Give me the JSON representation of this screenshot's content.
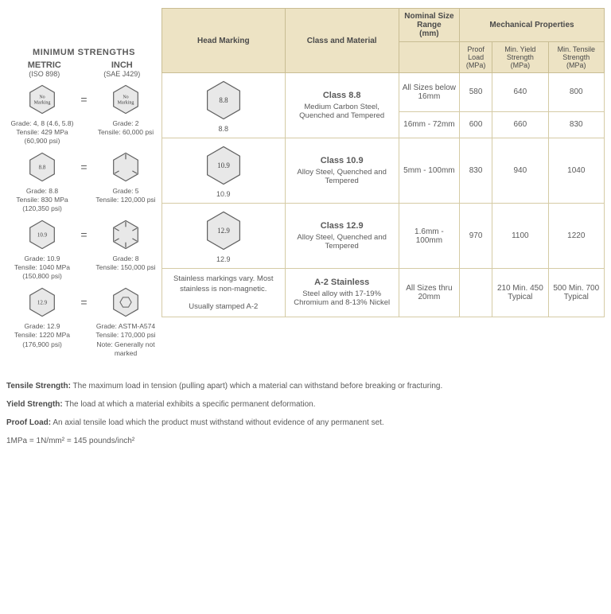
{
  "left": {
    "title": "MINIMUM STRENGTHS",
    "metric": {
      "unit": "METRIC",
      "std": "(ISO 898)"
    },
    "inch": {
      "unit": "INCH",
      "std": "(SAE J429)"
    },
    "comparisons": [
      {
        "metric_mark": "No\nMarking",
        "metric_grade": "Grade: 4, 8 (4.6, 5.8)",
        "metric_tensile": "Tensile: 429 MPa",
        "metric_psi": "(60,900 psi)",
        "inch_mark": "No\nMarking",
        "inch_grade": "Grade: 2",
        "inch_tensile": "Tensile: 60,000 psi",
        "inch_lines": 0
      },
      {
        "metric_mark": "8.8",
        "metric_grade": "Grade: 8.8",
        "metric_tensile": "Tensile: 830 MPa",
        "metric_psi": "(120,350 psi)",
        "inch_grade": "Grade: 5",
        "inch_tensile": "Tensile: 120,000 psi",
        "inch_lines": 3
      },
      {
        "metric_mark": "10.9",
        "metric_grade": "Grade: 10.9",
        "metric_tensile": "Tensile: 1040 MPa",
        "metric_psi": "(150,800 psi)",
        "inch_grade": "Grade: 8",
        "inch_tensile": "Tensile: 150,000 psi",
        "inch_lines": 6
      },
      {
        "metric_mark": "12.9",
        "metric_grade": "Grade: 12.9",
        "metric_tensile": "Tensile: 1220 MPa",
        "metric_psi": "(176,900 psi)",
        "inch_grade": "Grade: ASTM-A574",
        "inch_tensile": "Tensile: 170,000 psi",
        "inch_note": "Note: Generally not marked",
        "inch_socket": true
      }
    ]
  },
  "table": {
    "headers": {
      "head_marking": "Head Marking",
      "class_material": "Class and Material",
      "nominal": "Nominal Size Range",
      "nominal_unit": "(mm)",
      "mech": "Mechanical Properties",
      "proof": "Proof Load",
      "proof_unit": "(MPa)",
      "yield": "Min. Yield Strength",
      "yield_unit": "(MPa)",
      "tensile": "Min. Tensile Strength",
      "tensile_unit": "(MPa)"
    },
    "rows": [
      {
        "mark": "8.8",
        "class_name": "Class 8.8",
        "material": "Medium Carbon Steel, Quenched and Tempered",
        "sizes": [
          {
            "range": "All Sizes below 16mm",
            "proof": "580",
            "yield": "640",
            "tensile": "800"
          },
          {
            "range": "16mm - 72mm",
            "proof": "600",
            "yield": "660",
            "tensile": "830"
          }
        ]
      },
      {
        "mark": "10.9",
        "class_name": "Class 10.9",
        "material": "Alloy Steel, Quenched and Tempered",
        "sizes": [
          {
            "range": "5mm - 100mm",
            "proof": "830",
            "yield": "940",
            "tensile": "1040"
          }
        ]
      },
      {
        "mark": "12.9",
        "class_name": "Class 12.9",
        "material": "Alloy Steel, Quenched and Tempered",
        "sizes": [
          {
            "range": "1.6mm - 100mm",
            "proof": "970",
            "yield": "1100",
            "tensile": "1220"
          }
        ]
      },
      {
        "stainless_note": "Stainless markings vary. Most stainless is non-magnetic.",
        "stainless_note2": "Usually stamped A-2",
        "class_name": "A-2 Stainless",
        "material": "Steel alloy with 17-19% Chromium and 8-13% Nickel",
        "sizes": [
          {
            "range": "All Sizes thru 20mm",
            "proof": "",
            "yield": "210 Min. 450 Typical",
            "tensile": "500 Min. 700 Typical"
          }
        ]
      }
    ]
  },
  "defs": {
    "tensile_label": "Tensile Strength:",
    "tensile": "The maximum load in tension (pulling apart) which a material can withstand before breaking or fracturing.",
    "yield_label": "Yield Strength:",
    "yield": "The load at which a material exhibits a specific permanent deformation.",
    "proof_label": "Proof Load:",
    "proof": "An axial tensile load which the product must withstand without evidence of any permanent set.",
    "conversion": "1MPa = 1N/mm² = 145 pounds/inch²"
  },
  "colors": {
    "header_bg": "#ede3c4",
    "border": "#c9bd93",
    "hex_fill": "#e8e8e8",
    "hex_stroke": "#606060"
  }
}
